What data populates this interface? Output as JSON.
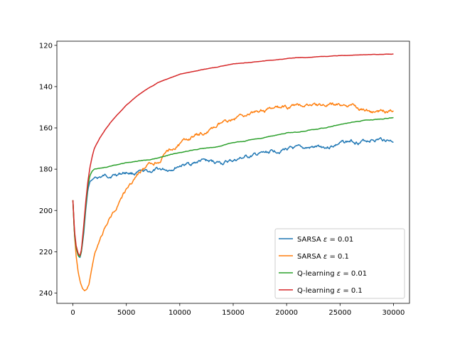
{
  "chart_data": {
    "type": "line",
    "title": "",
    "xlabel": "",
    "ylabel": "",
    "xlim": [
      -1500,
      31500
    ],
    "ylim": [
      245,
      118
    ],
    "y_inverted": true,
    "grid": false,
    "legend_position": "lower-right",
    "x_ticks": [
      0,
      5000,
      10000,
      15000,
      20000,
      25000,
      30000
    ],
    "x_tick_labels": [
      "0",
      "5000",
      "10000",
      "15000",
      "20000",
      "25000",
      "30000"
    ],
    "y_ticks": [
      120,
      140,
      160,
      180,
      200,
      220,
      240
    ],
    "y_tick_labels": [
      "120",
      "140",
      "160",
      "180",
      "200",
      "220",
      "240"
    ],
    "series": [
      {
        "name": "SARSA ε = 0.01",
        "name_main": "SARSA ",
        "name_eps": "ε",
        "name_rest": " = 0.01",
        "color": "#1f77b4",
        "noise": 0.6,
        "x": [
          0,
          150,
          300,
          500,
          650,
          800,
          1000,
          1200,
          1400,
          1600,
          2000,
          2500,
          3000,
          3500,
          4000,
          4500,
          5000,
          6000,
          7000,
          8000,
          9000,
          10000,
          11000,
          12000,
          13000,
          14000,
          15000,
          16000,
          17000,
          18000,
          19000,
          20000,
          21000,
          22000,
          23000,
          24000,
          25000,
          26000,
          27000,
          28000,
          29000,
          30000
        ],
        "y": [
          195,
          212,
          218,
          222,
          223,
          220,
          212,
          200,
          190,
          186,
          184.5,
          184,
          183.5,
          183,
          182.5,
          182,
          181.5,
          182,
          181.5,
          180.5,
          180,
          178,
          177.5,
          176,
          176.5,
          177,
          176,
          174.5,
          173.5,
          172.5,
          171,
          170,
          170.5,
          170,
          169.5,
          169,
          167.5,
          166.5,
          166.5,
          165.5,
          165.5,
          166
        ]
      },
      {
        "name": "SARSA ε = 0.1",
        "name_main": "SARSA ",
        "name_eps": "ε",
        "name_rest": " = 0.1",
        "color": "#ff7f0e",
        "noise": 0.6,
        "x": [
          0,
          150,
          300,
          500,
          700,
          900,
          1100,
          1300,
          1500,
          1700,
          2000,
          2500,
          3000,
          3500,
          4000,
          4500,
          5000,
          6000,
          7000,
          8000,
          9000,
          10000,
          11000,
          12000,
          13000,
          14000,
          15000,
          16000,
          17000,
          18000,
          19000,
          20000,
          21000,
          22000,
          23000,
          24000,
          25000,
          26000,
          27000,
          28000,
          29000,
          30000
        ],
        "y": [
          195,
          212,
          222,
          230,
          235,
          238,
          239,
          238.5,
          236,
          230,
          222,
          214,
          209,
          204,
          199,
          194,
          190,
          183,
          179,
          176,
          171,
          168,
          165,
          163,
          161,
          158,
          155.5,
          153.5,
          152.5,
          151.5,
          151,
          150,
          149.5,
          148.5,
          149,
          149,
          149,
          149.5,
          150.5,
          152.5,
          152,
          151
        ]
      },
      {
        "name": "Q-learning ε = 0.01",
        "name_main": "Q-learning ",
        "name_eps": "ε",
        "name_rest": " = 0.01",
        "color": "#2ca02c",
        "noise": 0.1,
        "x": [
          0,
          150,
          300,
          500,
          650,
          800,
          1000,
          1200,
          1400,
          1600,
          1800,
          2000,
          2500,
          3000,
          4000,
          5000,
          6000,
          7000,
          8000,
          9000,
          10000,
          11000,
          12000,
          13000,
          14000,
          15000,
          16000,
          17000,
          18000,
          19000,
          20000,
          21000,
          22000,
          23000,
          24000,
          25000,
          26000,
          27000,
          28000,
          29000,
          30000
        ],
        "y": [
          195,
          212,
          218,
          222,
          222.5,
          220,
          210,
          198,
          188,
          183,
          181,
          180,
          179.5,
          179,
          178,
          177,
          176,
          175.5,
          174.5,
          173,
          172,
          171,
          170,
          169.5,
          168.5,
          167,
          166.5,
          165.5,
          164.5,
          163.5,
          162.5,
          162,
          161,
          160.5,
          159.5,
          158.5,
          157.5,
          156.5,
          156,
          155.5,
          155
        ]
      },
      {
        "name": "Q-learning ε = 0.1",
        "name_main": "Q-learning ",
        "name_eps": "ε",
        "name_rest": " = 0.1",
        "color": "#d62728",
        "noise": 0.05,
        "x": [
          0,
          150,
          300,
          500,
          650,
          800,
          1000,
          1200,
          1400,
          1600,
          1800,
          2000,
          2500,
          3000,
          3500,
          4000,
          5000,
          6000,
          7000,
          8000,
          9000,
          10000,
          11000,
          12000,
          13000,
          14000,
          15000,
          16000,
          17000,
          18000,
          19000,
          20000,
          21000,
          22000,
          23000,
          24000,
          25000,
          26000,
          27000,
          28000,
          29000,
          30000
        ],
        "y": [
          195,
          210,
          217,
          221,
          222,
          219,
          208,
          196,
          186,
          179,
          174,
          170,
          165,
          161,
          157.5,
          154.5,
          149,
          144.5,
          141,
          138,
          136,
          134,
          133,
          132,
          131,
          130,
          129,
          128.5,
          128,
          127.5,
          127,
          126.5,
          126,
          125.8,
          125.5,
          125.2,
          125,
          124.8,
          124.6,
          124.5,
          124.4,
          124.3
        ]
      }
    ]
  }
}
